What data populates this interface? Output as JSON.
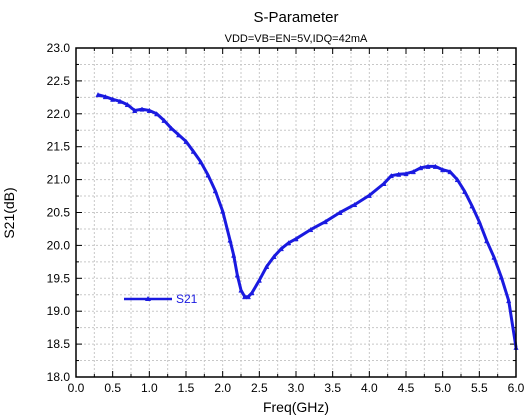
{
  "chart_data": {
    "type": "line",
    "title": "S-Parameter",
    "subtitle": "VDD=VB=EN=5V,IDQ=42mA",
    "xlabel": "Freq(GHz)",
    "ylabel": "S21(dB)",
    "xlim": [
      0.0,
      6.0
    ],
    "ylim": [
      18.0,
      23.0
    ],
    "xticks": [
      "0.0",
      "0.5",
      "1.0",
      "1.5",
      "2.0",
      "2.5",
      "3.0",
      "3.5",
      "4.0",
      "4.5",
      "5.0",
      "5.5",
      "6.0"
    ],
    "yticks": [
      "18.0",
      "18.5",
      "19.0",
      "19.5",
      "20.0",
      "20.5",
      "21.0",
      "21.5",
      "22.0",
      "22.5",
      "23.0"
    ],
    "grid": true,
    "legend_position": "lower-left",
    "series": [
      {
        "name": "S21",
        "color": "#1a1ae0",
        "marker": "triangle",
        "x": [
          0.3,
          0.4,
          0.5,
          0.6,
          0.7,
          0.8,
          0.9,
          1.0,
          1.1,
          1.2,
          1.3,
          1.4,
          1.5,
          1.6,
          1.7,
          1.8,
          1.9,
          2.0,
          2.1,
          2.15,
          2.2,
          2.25,
          2.3,
          2.35,
          2.4,
          2.5,
          2.6,
          2.7,
          2.8,
          2.9,
          3.0,
          3.2,
          3.4,
          3.6,
          3.8,
          4.0,
          4.2,
          4.3,
          4.4,
          4.5,
          4.6,
          4.7,
          4.8,
          4.9,
          5.0,
          5.1,
          5.2,
          5.3,
          5.4,
          5.5,
          5.6,
          5.7,
          5.8,
          5.9,
          6.0
        ],
        "y": [
          22.29,
          22.26,
          22.22,
          22.19,
          22.14,
          22.05,
          22.07,
          22.05,
          22.0,
          21.9,
          21.78,
          21.68,
          21.58,
          21.43,
          21.27,
          21.07,
          20.83,
          20.52,
          20.08,
          19.85,
          19.55,
          19.32,
          19.22,
          19.22,
          19.28,
          19.47,
          19.68,
          19.83,
          19.95,
          20.04,
          20.1,
          20.24,
          20.36,
          20.5,
          20.62,
          20.76,
          20.94,
          21.06,
          21.08,
          21.09,
          21.12,
          21.18,
          21.2,
          21.2,
          21.15,
          21.12,
          21.0,
          20.82,
          20.6,
          20.36,
          20.07,
          19.82,
          19.52,
          19.16,
          18.45
        ]
      }
    ]
  }
}
